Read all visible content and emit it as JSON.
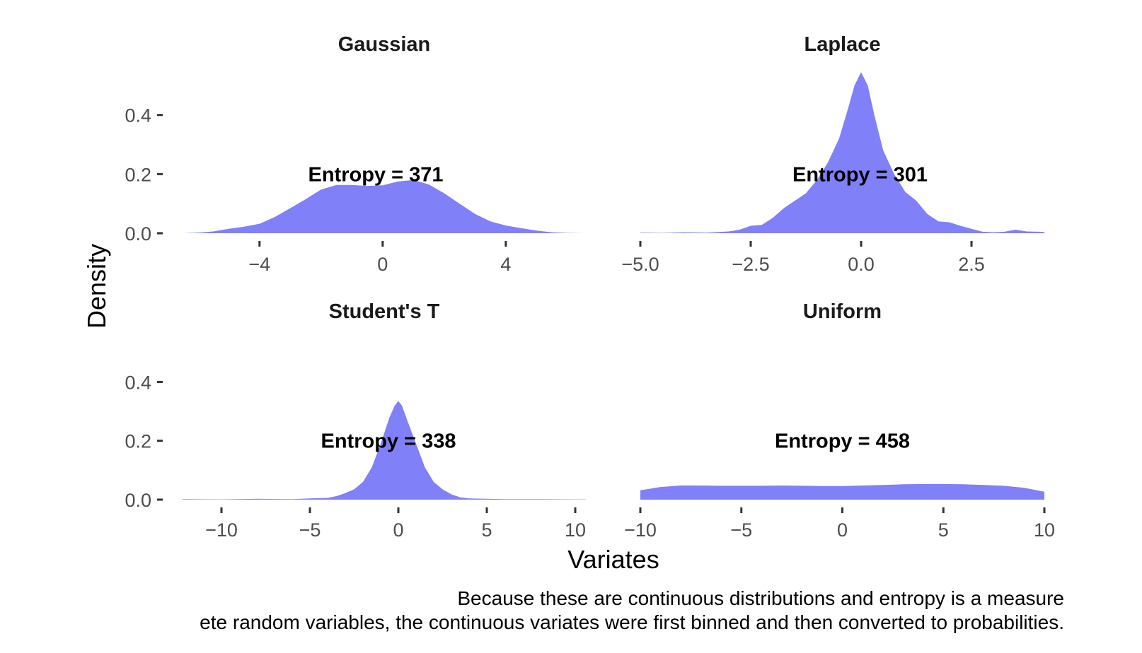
{
  "figure": {
    "xlabel": "Variates",
    "ylabel": "Density",
    "caption_lines": [
      "Because these are continuous distributions and entropy is a measure",
      "ete random variables, the continuous variates were first binned and then converted to probabilities."
    ]
  },
  "colors": {
    "fill": "#8080f8",
    "text": "#1a1a1a",
    "tick_text": "#4d4d4d"
  },
  "chart_data": [
    {
      "type": "area",
      "title": "Gaussian",
      "annotation": "Entropy = 371",
      "xlim": [
        -6.5,
        6.6
      ],
      "ylim": [
        0,
        0.55
      ],
      "xticks": [
        -4,
        0,
        4
      ],
      "xtick_labels": [
        "−4",
        "0",
        "4"
      ],
      "yticks": [
        0.0,
        0.2,
        0.4
      ],
      "ytick_labels": [
        "0.0",
        "0.2",
        "0.4"
      ],
      "x": [
        -6.5,
        -6.0,
        -5.5,
        -5.0,
        -4.5,
        -4.0,
        -3.5,
        -3.0,
        -2.5,
        -2.0,
        -1.5,
        -1.0,
        -0.5,
        0.0,
        0.5,
        1.0,
        1.5,
        2.0,
        2.5,
        3.0,
        3.5,
        4.0,
        4.5,
        5.0,
        5.5,
        6.0,
        6.6
      ],
      "y": [
        0.0,
        0.002,
        0.006,
        0.015,
        0.022,
        0.032,
        0.055,
        0.085,
        0.115,
        0.148,
        0.163,
        0.163,
        0.16,
        0.162,
        0.175,
        0.18,
        0.165,
        0.135,
        0.1,
        0.065,
        0.04,
        0.026,
        0.017,
        0.009,
        0.003,
        0.001,
        0.0
      ]
    },
    {
      "type": "area",
      "title": "Laplace",
      "annotation": "Entropy = 301",
      "xlim": [
        -5.0,
        4.15
      ],
      "ylim": [
        0,
        0.55
      ],
      "xticks": [
        -5.0,
        -2.5,
        0.0,
        2.5
      ],
      "xtick_labels": [
        "−5.0",
        "−2.5",
        "0.0",
        "2.5"
      ],
      "yticks": [
        0.0,
        0.2,
        0.4
      ],
      "yticks_labels_shown": false,
      "x": [
        -5.0,
        -4.5,
        -4.0,
        -3.5,
        -3.0,
        -2.75,
        -2.5,
        -2.25,
        -2.0,
        -1.75,
        -1.5,
        -1.25,
        -1.0,
        -0.75,
        -0.5,
        -0.3,
        -0.15,
        0.0,
        0.15,
        0.3,
        0.5,
        0.75,
        1.0,
        1.25,
        1.5,
        1.75,
        2.0,
        2.25,
        2.5,
        2.75,
        3.0,
        3.25,
        3.5,
        3.75,
        4.0,
        4.15
      ],
      "y": [
        0.002,
        0.001,
        0.003,
        0.002,
        0.006,
        0.012,
        0.025,
        0.028,
        0.052,
        0.085,
        0.11,
        0.135,
        0.18,
        0.24,
        0.32,
        0.42,
        0.5,
        0.545,
        0.5,
        0.4,
        0.28,
        0.2,
        0.14,
        0.11,
        0.065,
        0.04,
        0.037,
        0.025,
        0.015,
        0.005,
        0.003,
        0.005,
        0.012,
        0.006,
        0.005,
        0.004
      ]
    },
    {
      "type": "area",
      "title": "Student's T",
      "annotation": "Entropy = 338",
      "xlim": [
        -12.2,
        10.6
      ],
      "ylim": [
        0,
        0.55
      ],
      "xticks": [
        -10,
        -5,
        0,
        5,
        10
      ],
      "xtick_labels": [
        "−10",
        "−5",
        "0",
        "5",
        "10"
      ],
      "yticks": [
        0.0,
        0.2,
        0.4
      ],
      "ytick_labels": [
        "0.0",
        "0.2",
        "0.4"
      ],
      "x": [
        -12.2,
        -10,
        -8,
        -6,
        -5,
        -4,
        -3.5,
        -3.0,
        -2.5,
        -2.0,
        -1.5,
        -1.0,
        -0.5,
        -0.2,
        0.0,
        0.2,
        0.5,
        1.0,
        1.5,
        2.0,
        2.5,
        3.0,
        3.5,
        4.0,
        5.0,
        6.0,
        8.0,
        10.0,
        10.6
      ],
      "y": [
        0.002,
        0.001,
        0.003,
        0.002,
        0.004,
        0.006,
        0.012,
        0.022,
        0.035,
        0.06,
        0.11,
        0.19,
        0.28,
        0.32,
        0.335,
        0.32,
        0.27,
        0.19,
        0.11,
        0.06,
        0.035,
        0.018,
        0.008,
        0.004,
        0.003,
        0.002,
        0.002,
        0.001,
        0.001
      ]
    },
    {
      "type": "area",
      "title": "Uniform",
      "annotation": "Entropy = 458",
      "xlim": [
        -10,
        10
      ],
      "ylim": [
        0,
        0.55
      ],
      "xticks": [
        -10,
        -5,
        0,
        5,
        10
      ],
      "xtick_labels": [
        "−10",
        "−5",
        "0",
        "5",
        "10"
      ],
      "yticks": [
        0.0,
        0.2,
        0.4
      ],
      "yticks_labels_shown": false,
      "x": [
        -10,
        -9,
        -8,
        -7,
        -6,
        -5,
        -4,
        -3,
        -2,
        -1,
        0,
        1,
        2,
        3,
        4,
        5,
        6,
        7,
        8,
        9,
        10
      ],
      "y": [
        0.032,
        0.043,
        0.048,
        0.048,
        0.047,
        0.047,
        0.047,
        0.048,
        0.047,
        0.046,
        0.046,
        0.048,
        0.05,
        0.052,
        0.053,
        0.053,
        0.052,
        0.05,
        0.047,
        0.04,
        0.027
      ]
    }
  ]
}
